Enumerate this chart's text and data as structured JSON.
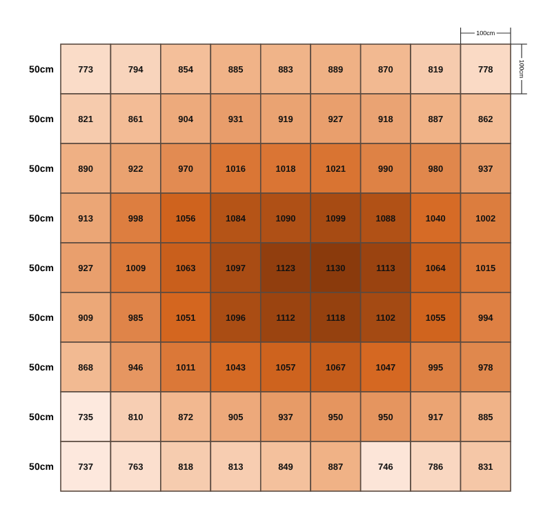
{
  "chart_data": {
    "type": "heatmap",
    "categories": [
      null,
      null,
      null,
      null,
      null,
      null,
      null,
      null,
      null
    ],
    "y_categories": [
      "50cm",
      "50cm",
      "50cm",
      "50cm",
      "50cm",
      "50cm",
      "50cm",
      "50cm",
      "50cm"
    ],
    "cells": [
      [
        773,
        794,
        854,
        885,
        883,
        889,
        870,
        819,
        778
      ],
      [
        821,
        861,
        904,
        931,
        919,
        927,
        918,
        887,
        862
      ],
      [
        890,
        922,
        970,
        1016,
        1018,
        1021,
        990,
        980,
        937
      ],
      [
        913,
        998,
        1056,
        1084,
        1090,
        1099,
        1088,
        1040,
        1002
      ],
      [
        927,
        1009,
        1063,
        1097,
        1123,
        1130,
        1113,
        1064,
        1015
      ],
      [
        909,
        985,
        1051,
        1096,
        1112,
        1118,
        1102,
        1055,
        994
      ],
      [
        868,
        946,
        1011,
        1043,
        1057,
        1067,
        1047,
        995,
        978
      ],
      [
        735,
        810,
        872,
        905,
        937,
        950,
        950,
        917,
        885
      ],
      [
        737,
        763,
        818,
        813,
        849,
        887,
        746,
        786,
        831
      ]
    ],
    "data_labels": true,
    "annotations": [
      "100cm",
      "100cm"
    ]
  }
}
